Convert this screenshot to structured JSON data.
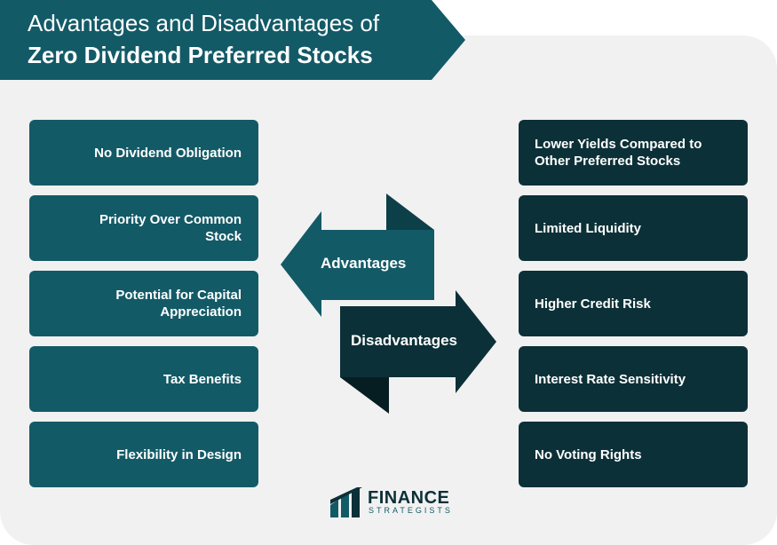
{
  "title": {
    "line1": "Advantages and Disadvantages of",
    "line2": "Zero Dividend Preferred Stocks"
  },
  "advantages_label": "Advantages",
  "disadvantages_label": "Disadvantages",
  "advantages": [
    "No Dividend Obligation",
    "Priority Over Common Stock",
    "Potential for Capital Appreciation",
    "Tax Benefits",
    "Flexibility in Design"
  ],
  "disadvantages": [
    "Lower Yields Compared to Other Preferred Stocks",
    "Limited Liquidity",
    "Higher Credit Risk",
    "Interest Rate Sensitivity",
    "No Voting Rights"
  ],
  "logo": {
    "name": "FINANCE",
    "sub": "STRATEGISTS"
  },
  "colors": {
    "title_banner": "#135a67",
    "advantage_box": "#135a67",
    "disadvantage_box": "#0c3037",
    "panel": "#f1f1f1"
  }
}
